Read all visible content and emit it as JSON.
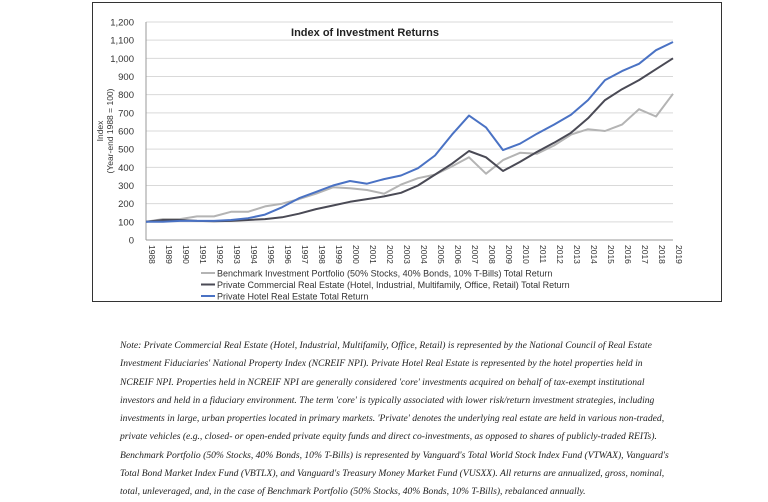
{
  "chart_data": {
    "type": "line",
    "title": "Index of Investment Returns",
    "ylabel": "Index",
    "ylabel_sub": "(Year-end 1988 = 100)",
    "xlabel": "",
    "ylim": [
      0,
      1200
    ],
    "yticks": [
      "0",
      "100",
      "200",
      "300",
      "400",
      "500",
      "600",
      "700",
      "800",
      "900",
      "1,000",
      "1,100",
      "1,200"
    ],
    "ytick_values": [
      0,
      100,
      200,
      300,
      400,
      500,
      600,
      700,
      800,
      900,
      1000,
      1100,
      1200
    ],
    "grid": true,
    "legend_position": "bottom",
    "x": [
      "1988",
      "1989",
      "1990",
      "1991",
      "1992",
      "1993",
      "1994",
      "1995",
      "1996",
      "1997",
      "1998",
      "1999",
      "2000",
      "2001",
      "2002",
      "2003",
      "2004",
      "2005",
      "2006",
      "2007",
      "2008",
      "2009",
      "2010",
      "2011",
      "2012",
      "2013",
      "2014",
      "2015",
      "2016",
      "2017",
      "2018",
      "2019"
    ],
    "series": [
      {
        "name": "Benchmark Investment Portfolio (50% Stocks, 40% Bonds, 10% T-Bills) Total Return",
        "color": "#b4b4b4",
        "values": [
          100,
          115,
          115,
          130,
          130,
          155,
          155,
          185,
          200,
          225,
          255,
          290,
          285,
          275,
          255,
          305,
          340,
          360,
          405,
          455,
          365,
          440,
          480,
          475,
          520,
          580,
          610,
          600,
          635,
          720,
          680,
          805
        ]
      },
      {
        "name": "Private Commercial Real Estate (Hotel, Industrial, Multifamily, Office, Retail) Total Return",
        "color": "#4a4a55",
        "values": [
          100,
          110,
          110,
          105,
          103,
          105,
          110,
          115,
          125,
          145,
          170,
          190,
          210,
          225,
          240,
          260,
          300,
          360,
          420,
          490,
          455,
          380,
          430,
          485,
          535,
          590,
          670,
          770,
          830,
          880,
          940,
          1000
        ]
      },
      {
        "name": "Private Hotel Real Estate Total Return",
        "color": "#4a72c4",
        "values": [
          100,
          100,
          105,
          105,
          105,
          110,
          120,
          140,
          180,
          230,
          265,
          300,
          325,
          310,
          335,
          355,
          395,
          465,
          580,
          685,
          620,
          495,
          530,
          585,
          635,
          690,
          770,
          880,
          930,
          970,
          1045,
          1090
        ]
      }
    ]
  },
  "note_lines": [
    "Note:  Private Commercial Real Estate (Hotel, Industrial, Multifamily, Office, Retail) is represented by the National Council of Real Estate",
    "Investment Fiduciaries' National Property Index (NCREIF NPI).  Private Hotel Real Estate is represented by the hotel properties held in",
    "NCREIF NPI.  Properties held in NCREIF NPI are generally considered 'core' investments acquired on behalf of tax-exempt institutional",
    "investors and held in a fiduciary environment.  The term 'core' is typically associated with lower risk/return investment strategies, including",
    "investments in large, urban properties located in primary markets.  'Private' denotes the underlying real estate are held in various non-traded,",
    "private vehicles (e.g., closed- or open-ended private equity funds and direct co-investments, as opposed to shares of publicly-traded REITs).",
    "Benchmark Portfolio (50% Stocks, 40% Bonds, 10% T-Bills) is represented by Vanguard's Total World Stock Index Fund (VTWAX), Vanguard's",
    "Total Bond Market Index Fund (VBTLX), and Vanguard's Treasury Money Market Fund (VUSXX).  All returns are annualized, gross, nominal,",
    "total, unleveraged, and, in the case of Benchmark Portfolio (50% Stocks, 40% Bonds, 10% T-Bills), rebalanced annually."
  ]
}
